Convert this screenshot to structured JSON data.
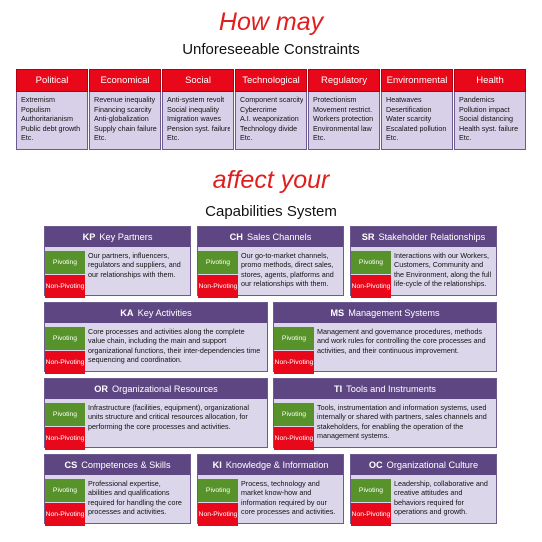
{
  "title1": "How may",
  "title2": "Unforeseeable Constraints",
  "title3": "affect your",
  "title4": "Capabilities System",
  "constraints": [
    {
      "label": "Political",
      "items": [
        "Extremism",
        "Populism",
        "Authoritarianism",
        "Public debt growth",
        "Etc."
      ]
    },
    {
      "label": "Economical",
      "items": [
        "Revenue inequality",
        "Financing scarcity",
        "Anti-globalization",
        "Supply chain failure",
        "Etc."
      ]
    },
    {
      "label": "Social",
      "items": [
        "Anti-system revolt",
        "Social inequality",
        "Imigration waves",
        "Pension syst. failure",
        "Etc."
      ]
    },
    {
      "label": "Technological",
      "items": [
        "Component scarcity",
        "Cybercrime",
        "A.I. weaponization",
        "Technology divide",
        "Etc."
      ]
    },
    {
      "label": "Regulatory",
      "items": [
        "Protectionism",
        "Movement restrict.",
        "Workers protection",
        "Environmental law",
        "Etc."
      ]
    },
    {
      "label": "Environmental",
      "items": [
        "Heatwaves",
        "Desertification",
        "Water scarcity",
        "Escalated pollution",
        "Etc."
      ]
    },
    {
      "label": "Health",
      "items": [
        "Pandemics",
        "Pollution impact",
        "Social distancing",
        "Health syst. failure",
        "Etc."
      ]
    }
  ],
  "pivoting_label": "Pivoting",
  "non_pivoting_label": "Non-Pivoting",
  "capabilities": {
    "kp": {
      "code": "KP",
      "name": "Key Partners",
      "desc": "Our partners, influencers, regulators and suppliers, and our relationships with them."
    },
    "ch": {
      "code": "CH",
      "name": "Sales Channels",
      "desc": "Our go-to-market channels, promo methods, direct sales, stores, agents, platforms and our relationships with them."
    },
    "sr": {
      "code": "SR",
      "name": "Stakeholder Relationships",
      "desc": "Interactions with our Workers, Customers, Community and the Environment, along the full life-cycle of the relationships."
    },
    "ka": {
      "code": "KA",
      "name": "Key Activities",
      "desc": "Core processes and activities along the complete value chain, including the main and support organizational functions, their inter-dependencies time sequencing and coordination."
    },
    "ms": {
      "code": "MS",
      "name": "Management Systems",
      "desc": "Management and governance procedures, methods and work rules for controlling the core processes and activities, and their continuous improvement."
    },
    "or": {
      "code": "OR",
      "name": "Organizational Resources",
      "desc": "Infrastructure (facilities, equipment), organizational units structure and critical resources allocation, for performing the core processes and activities."
    },
    "ti": {
      "code": "TI",
      "name": "Tools and Instruments",
      "desc": "Tools, instrumentation and information systems, used internally or shared with partners, sales channels and stakeholders, for enabling the operation of the management systems."
    },
    "cs": {
      "code": "CS",
      "name": "Competences & Skills",
      "desc": "Professional expertise, abilities and qualifications required for handling the core processes and activities."
    },
    "ki": {
      "code": "KI",
      "name": "Knowledge & Information",
      "desc": "Process, technology and market know-how and information required by our core processes and activities."
    },
    "oc": {
      "code": "OC",
      "name": "Organizational Culture",
      "desc": "Leadership, collaborative and creative attitudes and behaviors required for operations and growth."
    }
  }
}
